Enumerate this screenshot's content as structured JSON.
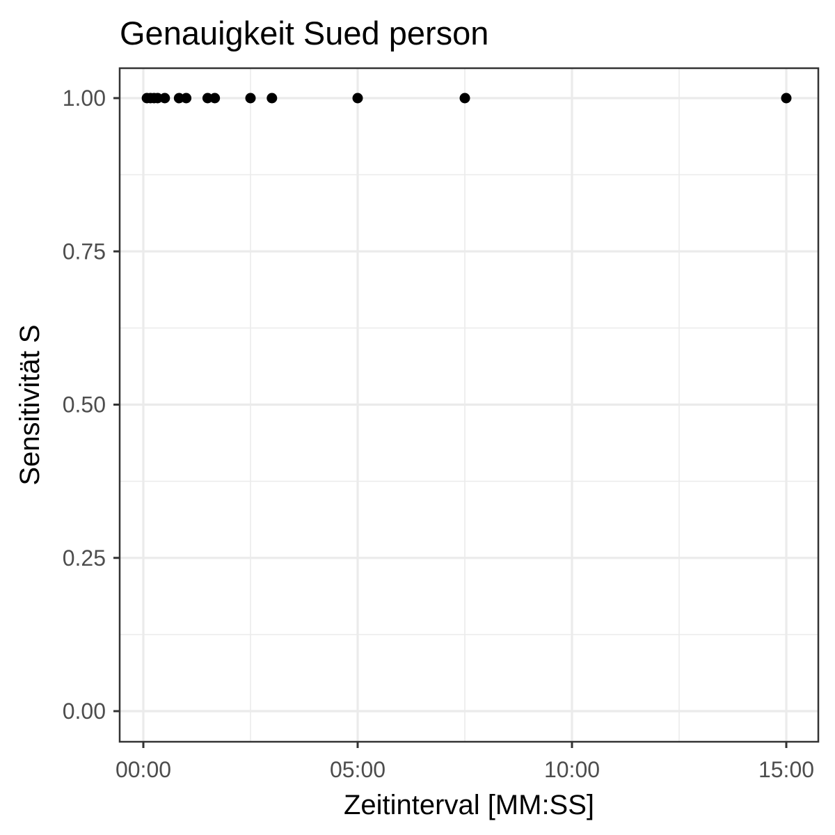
{
  "chart_data": {
    "type": "scatter",
    "title": "Genauigkeit Sued person",
    "xlabel": "Zeitinterval [MM:SS]",
    "ylabel": "Sensitivität S",
    "x_unit": "seconds",
    "xlim": [
      -80,
      2810
    ],
    "ylim": [
      -0.04,
      1.05
    ],
    "x_ticks": [
      0,
      300,
      600,
      900
    ],
    "x_tick_labels": [
      "00:00",
      "05:00",
      "10:00",
      "15:00"
    ],
    "y_ticks": [
      0,
      0.25,
      0.5,
      0.75,
      1.0
    ],
    "y_tick_labels": [
      "0.00",
      "0.25",
      "0.50",
      "0.75",
      "1.00"
    ],
    "grid": true,
    "points": [
      {
        "x": 5,
        "y": 1.0
      },
      {
        "x": 10,
        "y": 1.0
      },
      {
        "x": 15,
        "y": 1.0
      },
      {
        "x": 20,
        "y": 1.0
      },
      {
        "x": 30,
        "y": 1.0
      },
      {
        "x": 50,
        "y": 1.0
      },
      {
        "x": 60,
        "y": 1.0
      },
      {
        "x": 90,
        "y": 1.0
      },
      {
        "x": 100,
        "y": 1.0
      },
      {
        "x": 150,
        "y": 1.0
      },
      {
        "x": 180,
        "y": 1.0
      },
      {
        "x": 300,
        "y": 1.0
      },
      {
        "x": 450,
        "y": 1.0
      },
      {
        "x": 900,
        "y": 1.0
      }
    ]
  }
}
